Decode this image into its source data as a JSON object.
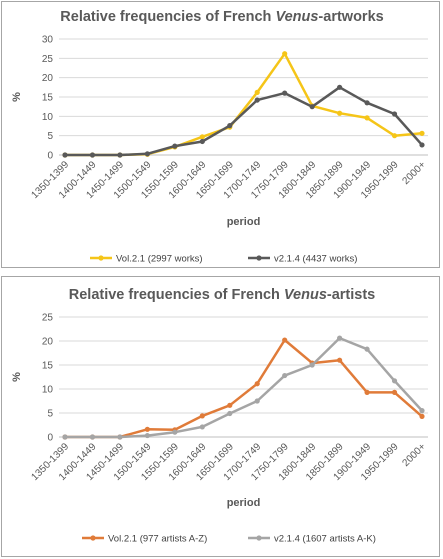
{
  "chart_data": [
    {
      "type": "line",
      "title_prefix": "Relative frequencies of French ",
      "title_italic": "Venus",
      "title_suffix": "-artworks",
      "xlabel": "period",
      "ylabel": "%",
      "ylim": [
        0,
        30
      ],
      "yticks": [
        0,
        5,
        10,
        15,
        20,
        25,
        30
      ],
      "grid": true,
      "legend_position": "bottom",
      "categories": [
        "1350-1399",
        "1400-1449",
        "1450-1499",
        "1500-1549",
        "1550-1599",
        "1600-1649",
        "1650-1699",
        "1700-1749",
        "1750-1799",
        "1800-1849",
        "1850-1899",
        "1900-1949",
        "1950-1999",
        "2000+"
      ],
      "series": [
        {
          "name": "Vol.2.1 (2997 works)",
          "color": "#f5c518",
          "values": [
            0,
            0,
            0,
            0.2,
            2.1,
            4.7,
            7.2,
            16.2,
            26.2,
            12.7,
            10.8,
            9.6,
            5.0,
            5.6
          ]
        },
        {
          "name": "v2.1.4 (4437 works)",
          "color": "#595959",
          "values": [
            0,
            0,
            0,
            0.3,
            2.3,
            3.5,
            7.6,
            14.2,
            16.0,
            12.5,
            17.5,
            13.5,
            10.6,
            2.6
          ]
        }
      ]
    },
    {
      "type": "line",
      "title_prefix": "Relative frequencies of French ",
      "title_italic": "Venus",
      "title_suffix": "-artists",
      "xlabel": "period",
      "ylabel": "%",
      "ylim": [
        0,
        25
      ],
      "yticks": [
        0,
        5,
        10,
        15,
        20,
        25
      ],
      "grid": true,
      "legend_position": "bottom",
      "categories": [
        "1350-1399",
        "1400-1449",
        "1450-1499",
        "1500-1549",
        "1550-1599",
        "1600-1649",
        "1650-1699",
        "1700-1749",
        "1750-1799",
        "1800-1849",
        "1850-1899",
        "1900-1949",
        "1950-1999",
        "2000+"
      ],
      "series": [
        {
          "name": "Vol.2.1 (977 artists A-Z)",
          "color": "#e07b39",
          "values": [
            0,
            0,
            0,
            1.6,
            1.5,
            4.4,
            6.6,
            11.1,
            20.2,
            15.4,
            16.0,
            9.3,
            9.3,
            4.3
          ]
        },
        {
          "name": "v2.1.4 (1607 artists A-K)",
          "color": "#a5a5a5",
          "values": [
            0,
            0,
            0,
            0.3,
            1.0,
            2.1,
            4.9,
            7.5,
            12.8,
            15.0,
            20.6,
            18.3,
            11.7,
            5.5
          ]
        }
      ]
    }
  ]
}
